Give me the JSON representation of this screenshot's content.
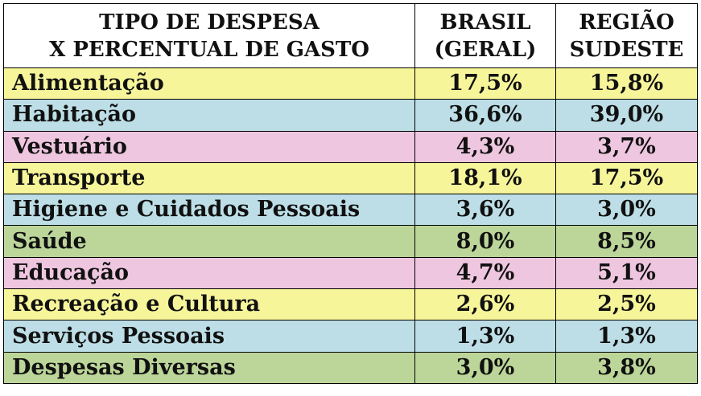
{
  "table": {
    "header": {
      "col1_line1": "TIPO DE DESPESA",
      "col1_line2": "X PERCENTUAL DE GASTO",
      "col2_line1": "BRASIL",
      "col2_line2": "(GERAL)",
      "col3_line1": "REGIÃO",
      "col3_line2": "SUDESTE"
    },
    "row_colors": {
      "yellow": "#f7f59a",
      "blue": "#bddee6",
      "pink": "#eec6df",
      "green": "#bcd69a"
    },
    "rows": [
      {
        "label": "Alimentação",
        "brasil": "17,5%",
        "sudeste": "15,8%",
        "color": "yellow"
      },
      {
        "label": "Habitação",
        "brasil": "36,6%",
        "sudeste": "39,0%",
        "color": "blue"
      },
      {
        "label": "Vestuário",
        "brasil": "4,3%",
        "sudeste": "3,7%",
        "color": "pink"
      },
      {
        "label": "Transporte",
        "brasil": "18,1%",
        "sudeste": "17,5%",
        "color": "yellow"
      },
      {
        "label": "Higiene e Cuidados Pessoais",
        "brasil": "3,6%",
        "sudeste": "3,0%",
        "color": "blue"
      },
      {
        "label": "Saúde",
        "brasil": "8,0%",
        "sudeste": "8,5%",
        "color": "green"
      },
      {
        "label": "Educação",
        "brasil": "4,7%",
        "sudeste": "5,1%",
        "color": "pink"
      },
      {
        "label": "Recreação e Cultura",
        "brasil": "2,6%",
        "sudeste": "2,5%",
        "color": "yellow"
      },
      {
        "label": "Serviços Pessoais",
        "brasil": "1,3%",
        "sudeste": "1,3%",
        "color": "blue"
      },
      {
        "label": "Despesas Diversas",
        "brasil": "3,0%",
        "sudeste": "3,8%",
        "color": "green"
      }
    ]
  }
}
